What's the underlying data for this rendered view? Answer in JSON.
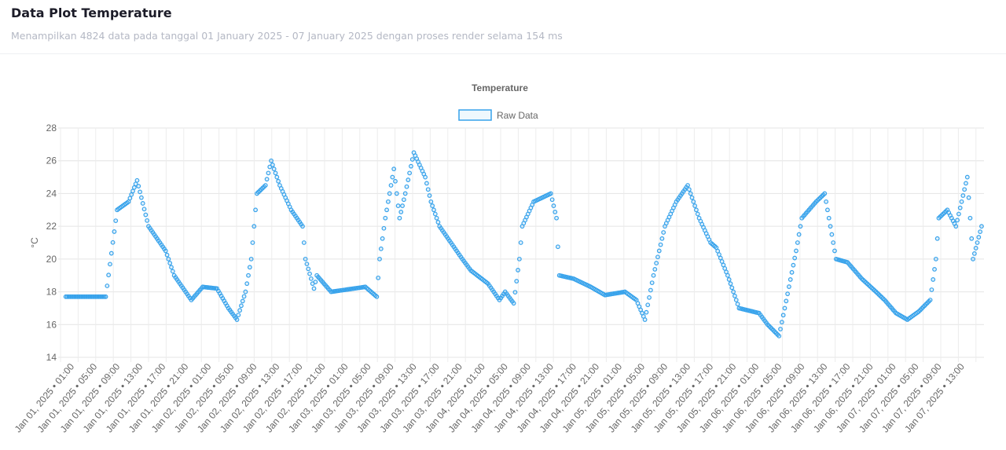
{
  "header": {
    "title": "Data Plot Temperature",
    "subtitle": "Menampilkan 4824 data pada tanggal 01 January 2025 - 07 January 2025 dengan proses render selama 154 ms"
  },
  "chart_data": {
    "type": "scatter",
    "title": "Temperature",
    "xlabel": "",
    "ylabel": "°C",
    "ylim": [
      14,
      28
    ],
    "yticks": [
      14,
      16,
      18,
      20,
      22,
      24,
      26,
      28
    ],
    "grid": true,
    "legend_position": "top",
    "color": "#36a2eb",
    "xticks": [
      "Jan 01, 2025 • 01:00",
      "Jan 01, 2025 • 05:00",
      "Jan 01, 2025 • 09:00",
      "Jan 01, 2025 • 13:00",
      "Jan 01, 2025 • 17:00",
      "Jan 01, 2025 • 21:00",
      "Jan 02, 2025 • 01:00",
      "Jan 02, 2025 • 05:00",
      "Jan 02, 2025 • 09:00",
      "Jan 02, 2025 • 13:00",
      "Jan 02, 2025 • 17:00",
      "Jan 02, 2025 • 21:00",
      "Jan 03, 2025 • 01:00",
      "Jan 03, 2025 • 05:00",
      "Jan 03, 2025 • 09:00",
      "Jan 03, 2025 • 13:00",
      "Jan 03, 2025 • 17:00",
      "Jan 03, 2025 • 21:00",
      "Jan 04, 2025 • 01:00",
      "Jan 04, 2025 • 05:00",
      "Jan 04, 2025 • 09:00",
      "Jan 04, 2025 • 13:00",
      "Jan 04, 2025 • 17:00",
      "Jan 04, 2025 • 21:00",
      "Jan 05, 2025 • 01:00",
      "Jan 05, 2025 • 05:00",
      "Jan 05, 2025 • 09:00",
      "Jan 05, 2025 • 13:00",
      "Jan 05, 2025 • 17:00",
      "Jan 05, 2025 • 21:00",
      "Jan 06, 2025 • 01:00",
      "Jan 06, 2025 • 05:00",
      "Jan 06, 2025 • 09:00",
      "Jan 06, 2025 • 13:00",
      "Jan 06, 2025 • 17:00",
      "Jan 06, 2025 • 21:00",
      "Jan 07, 2025 • 01:00",
      "Jan 07, 2025 • 05:00",
      "Jan 07, 2025 • 09:00",
      "Jan 07, 2025 • 13:00"
    ],
    "series": [
      {
        "name": "Raw Data",
        "points": [
          [
            "2025-01-01 00:00",
            17.7
          ],
          [
            "2025-01-01 07:00",
            17.7
          ],
          [
            "2025-01-01 09:00",
            23
          ],
          [
            "2025-01-01 11:00",
            23.5
          ],
          [
            "2025-01-01 12:30",
            24.8
          ],
          [
            "2025-01-01 14:30",
            22
          ],
          [
            "2025-01-01 17:30",
            20.5
          ],
          [
            "2025-01-01 19:00",
            19
          ],
          [
            "2025-01-01 22:00",
            17.5
          ],
          [
            "2025-01-02 00:00",
            18.3
          ],
          [
            "2025-01-02 02:30",
            18.2
          ],
          [
            "2025-01-02 04:30",
            17
          ],
          [
            "2025-01-02 06:00",
            16.3
          ],
          [
            "2025-01-02 07:30",
            18
          ],
          [
            "2025-01-02 08:30",
            20
          ],
          [
            "2025-01-02 09:30",
            24
          ],
          [
            "2025-01-02 11:00",
            24.5
          ],
          [
            "2025-01-02 12:00",
            26
          ],
          [
            "2025-01-02 13:30",
            24.5
          ],
          [
            "2025-01-02 15:30",
            23
          ],
          [
            "2025-01-02 17:30",
            22
          ],
          [
            "2025-01-02 18:00",
            20
          ],
          [
            "2025-01-02 19:30",
            18.2
          ],
          [
            "2025-01-02 20:00",
            19
          ],
          [
            "2025-01-02 22:30",
            18
          ],
          [
            "2025-01-03 02:30",
            18.2
          ],
          [
            "2025-01-03 04:30",
            18.3
          ],
          [
            "2025-01-03 06:30",
            17.7
          ],
          [
            "2025-01-03 07:00",
            20
          ],
          [
            "2025-01-03 08:00",
            22.5
          ],
          [
            "2025-01-03 09:30",
            25.5
          ],
          [
            "2025-01-03 10:30",
            22.5
          ],
          [
            "2025-01-03 11:30",
            24
          ],
          [
            "2025-01-03 13:00",
            26.5
          ],
          [
            "2025-01-03 15:00",
            25
          ],
          [
            "2025-01-03 16:00",
            23.5
          ],
          [
            "2025-01-03 17:30",
            22
          ],
          [
            "2025-01-03 19:30",
            21
          ],
          [
            "2025-01-03 21:30",
            20
          ],
          [
            "2025-01-03 23:00",
            19.3
          ],
          [
            "2025-01-04 02:00",
            18.5
          ],
          [
            "2025-01-04 04:00",
            17.5
          ],
          [
            "2025-01-04 05:00",
            18
          ],
          [
            "2025-01-04 06:30",
            17.3
          ],
          [
            "2025-01-04 07:30",
            20
          ],
          [
            "2025-01-04 08:00",
            22
          ],
          [
            "2025-01-04 10:00",
            23.5
          ],
          [
            "2025-01-04 13:00",
            24
          ],
          [
            "2025-01-04 14:00",
            22.5
          ],
          [
            "2025-01-04 14:30",
            19
          ],
          [
            "2025-01-04 17:00",
            18.8
          ],
          [
            "2025-01-04 20:00",
            18.3
          ],
          [
            "2025-01-04 22:30",
            17.8
          ],
          [
            "2025-01-05 02:00",
            18
          ],
          [
            "2025-01-05 04:00",
            17.5
          ],
          [
            "2025-01-05 05:30",
            16.3
          ],
          [
            "2025-01-05 07:00",
            19
          ],
          [
            "2025-01-05 09:00",
            22
          ],
          [
            "2025-01-05 11:00",
            23.5
          ],
          [
            "2025-01-05 13:00",
            24.5
          ],
          [
            "2025-01-05 15:00",
            22.5
          ],
          [
            "2025-01-05 17:00",
            21
          ],
          [
            "2025-01-05 18:00",
            20.7
          ],
          [
            "2025-01-05 20:00",
            19
          ],
          [
            "2025-01-05 22:00",
            17
          ],
          [
            "2025-01-06 01:30",
            16.7
          ],
          [
            "2025-01-06 03:00",
            16
          ],
          [
            "2025-01-06 05:00",
            15.3
          ],
          [
            "2025-01-06 06:00",
            17
          ],
          [
            "2025-01-06 08:00",
            20.5
          ],
          [
            "2025-01-06 09:00",
            22.5
          ],
          [
            "2025-01-06 11:30",
            23.5
          ],
          [
            "2025-01-06 13:00",
            24
          ],
          [
            "2025-01-06 14:00",
            22
          ],
          [
            "2025-01-06 15:00",
            20
          ],
          [
            "2025-01-06 17:00",
            19.8
          ],
          [
            "2025-01-06 19:30",
            18.8
          ],
          [
            "2025-01-06 22:00",
            18
          ],
          [
            "2025-01-06 23:30",
            17.5
          ],
          [
            "2025-01-07 01:30",
            16.7
          ],
          [
            "2025-01-07 03:30",
            16.3
          ],
          [
            "2025-01-07 05:30",
            16.8
          ],
          [
            "2025-01-07 07:30",
            17.5
          ],
          [
            "2025-01-07 08:30",
            20
          ],
          [
            "2025-01-07 09:00",
            22.5
          ],
          [
            "2025-01-07 10:30",
            23
          ],
          [
            "2025-01-07 12:00",
            22
          ],
          [
            "2025-01-07 14:00",
            25
          ],
          [
            "2025-01-07 15:00",
            20
          ],
          [
            "2025-01-07 16:30",
            22
          ]
        ]
      }
    ]
  }
}
